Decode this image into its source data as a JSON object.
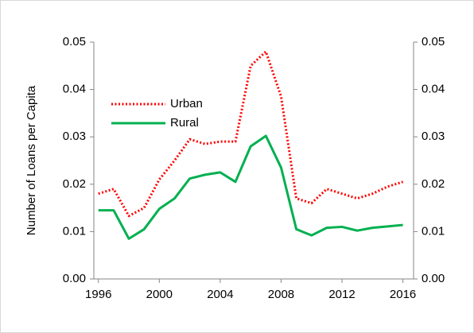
{
  "chart_data": {
    "type": "line",
    "y_label": "Number of Loans per Capita",
    "x": [
      1996,
      1997,
      1998,
      1999,
      2000,
      2001,
      2002,
      2003,
      2004,
      2005,
      2006,
      2007,
      2008,
      2009,
      2010,
      2011,
      2012,
      2013,
      2014,
      2015,
      2016
    ],
    "series": [
      {
        "name": "Urban",
        "color": "#ff0000",
        "style": "dotted",
        "values": [
          0.018,
          0.019,
          0.0133,
          0.015,
          0.021,
          0.025,
          0.0295,
          0.0285,
          0.029,
          0.029,
          0.045,
          0.048,
          0.0385,
          0.017,
          0.016,
          0.019,
          0.018,
          0.017,
          0.018,
          0.0195,
          0.0205
        ]
      },
      {
        "name": "Rural",
        "color": "#00b050",
        "style": "solid",
        "values": [
          0.0145,
          0.0145,
          0.0085,
          0.0105,
          0.0148,
          0.017,
          0.0212,
          0.022,
          0.0225,
          0.0205,
          0.028,
          0.0302,
          0.0235,
          0.0105,
          0.0092,
          0.0108,
          0.011,
          0.0102,
          0.0108,
          0.0111,
          0.0114
        ]
      }
    ],
    "xlim": [
      1995.7,
      2016.7
    ],
    "xticks": [
      1996,
      2000,
      2004,
      2008,
      2012,
      2016
    ],
    "ylim": [
      0,
      0.05
    ],
    "yticks": [
      {
        "value": 0,
        "label": "0.00"
      },
      0.01,
      0.02,
      0.03,
      0.04,
      0.05
    ],
    "y2lim": [
      0,
      0.05
    ],
    "y2ticks": [
      {
        "value": 0,
        "label": "0.00"
      },
      0.01,
      0.02,
      0.03,
      0.04,
      0.05
    ],
    "grid": false
  }
}
